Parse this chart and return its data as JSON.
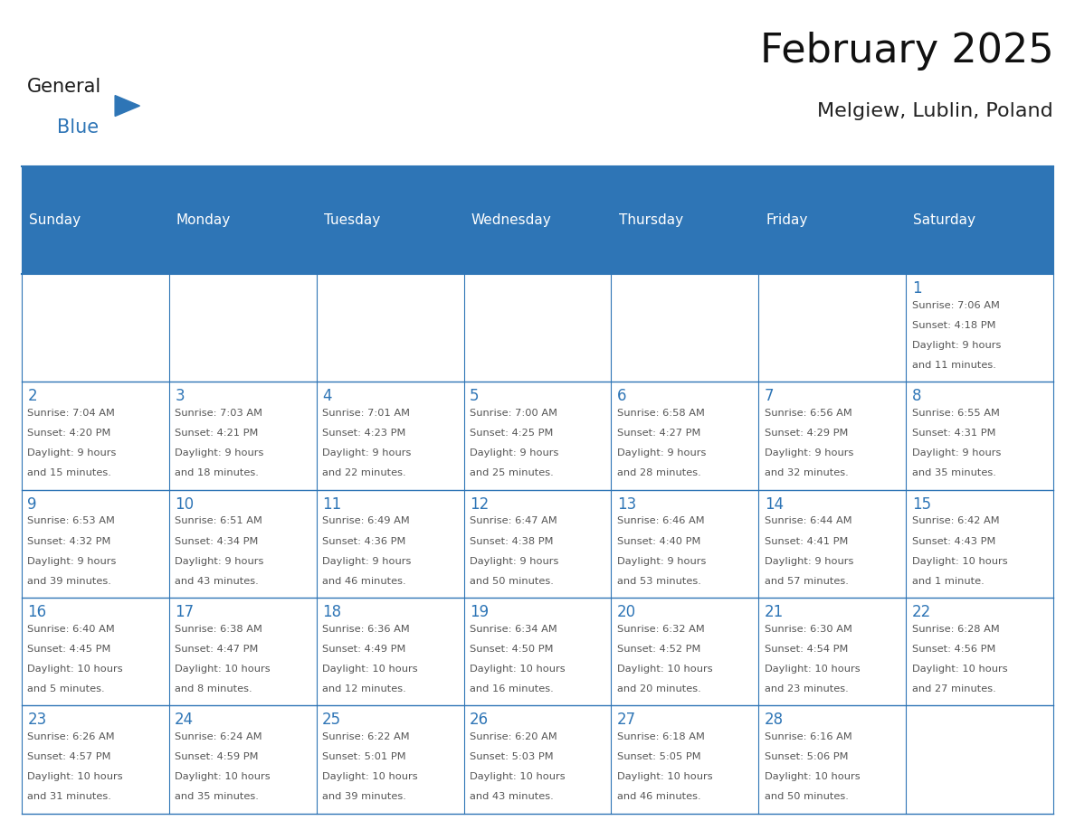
{
  "title": "February 2025",
  "subtitle": "Melgiew, Lublin, Poland",
  "header_bg": "#2E75B6",
  "header_text_color": "#FFFFFF",
  "cell_border_color": "#2E75B6",
  "day_number_color": "#2E75B6",
  "info_text_color": "#555555",
  "bg_color": "#FFFFFF",
  "days_of_week": [
    "Sunday",
    "Monday",
    "Tuesday",
    "Wednesday",
    "Thursday",
    "Friday",
    "Saturday"
  ],
  "weeks": [
    [
      {
        "day": "",
        "sunrise": "",
        "sunset": "",
        "daylight": ""
      },
      {
        "day": "",
        "sunrise": "",
        "sunset": "",
        "daylight": ""
      },
      {
        "day": "",
        "sunrise": "",
        "sunset": "",
        "daylight": ""
      },
      {
        "day": "",
        "sunrise": "",
        "sunset": "",
        "daylight": ""
      },
      {
        "day": "",
        "sunrise": "",
        "sunset": "",
        "daylight": ""
      },
      {
        "day": "",
        "sunrise": "",
        "sunset": "",
        "daylight": ""
      },
      {
        "day": "1",
        "sunrise": "Sunrise: 7:06 AM",
        "sunset": "Sunset: 4:18 PM",
        "daylight": "Daylight: 9 hours\nand 11 minutes."
      }
    ],
    [
      {
        "day": "2",
        "sunrise": "Sunrise: 7:04 AM",
        "sunset": "Sunset: 4:20 PM",
        "daylight": "Daylight: 9 hours\nand 15 minutes."
      },
      {
        "day": "3",
        "sunrise": "Sunrise: 7:03 AM",
        "sunset": "Sunset: 4:21 PM",
        "daylight": "Daylight: 9 hours\nand 18 minutes."
      },
      {
        "day": "4",
        "sunrise": "Sunrise: 7:01 AM",
        "sunset": "Sunset: 4:23 PM",
        "daylight": "Daylight: 9 hours\nand 22 minutes."
      },
      {
        "day": "5",
        "sunrise": "Sunrise: 7:00 AM",
        "sunset": "Sunset: 4:25 PM",
        "daylight": "Daylight: 9 hours\nand 25 minutes."
      },
      {
        "day": "6",
        "sunrise": "Sunrise: 6:58 AM",
        "sunset": "Sunset: 4:27 PM",
        "daylight": "Daylight: 9 hours\nand 28 minutes."
      },
      {
        "day": "7",
        "sunrise": "Sunrise: 6:56 AM",
        "sunset": "Sunset: 4:29 PM",
        "daylight": "Daylight: 9 hours\nand 32 minutes."
      },
      {
        "day": "8",
        "sunrise": "Sunrise: 6:55 AM",
        "sunset": "Sunset: 4:31 PM",
        "daylight": "Daylight: 9 hours\nand 35 minutes."
      }
    ],
    [
      {
        "day": "9",
        "sunrise": "Sunrise: 6:53 AM",
        "sunset": "Sunset: 4:32 PM",
        "daylight": "Daylight: 9 hours\nand 39 minutes."
      },
      {
        "day": "10",
        "sunrise": "Sunrise: 6:51 AM",
        "sunset": "Sunset: 4:34 PM",
        "daylight": "Daylight: 9 hours\nand 43 minutes."
      },
      {
        "day": "11",
        "sunrise": "Sunrise: 6:49 AM",
        "sunset": "Sunset: 4:36 PM",
        "daylight": "Daylight: 9 hours\nand 46 minutes."
      },
      {
        "day": "12",
        "sunrise": "Sunrise: 6:47 AM",
        "sunset": "Sunset: 4:38 PM",
        "daylight": "Daylight: 9 hours\nand 50 minutes."
      },
      {
        "day": "13",
        "sunrise": "Sunrise: 6:46 AM",
        "sunset": "Sunset: 4:40 PM",
        "daylight": "Daylight: 9 hours\nand 53 minutes."
      },
      {
        "day": "14",
        "sunrise": "Sunrise: 6:44 AM",
        "sunset": "Sunset: 4:41 PM",
        "daylight": "Daylight: 9 hours\nand 57 minutes."
      },
      {
        "day": "15",
        "sunrise": "Sunrise: 6:42 AM",
        "sunset": "Sunset: 4:43 PM",
        "daylight": "Daylight: 10 hours\nand 1 minute."
      }
    ],
    [
      {
        "day": "16",
        "sunrise": "Sunrise: 6:40 AM",
        "sunset": "Sunset: 4:45 PM",
        "daylight": "Daylight: 10 hours\nand 5 minutes."
      },
      {
        "day": "17",
        "sunrise": "Sunrise: 6:38 AM",
        "sunset": "Sunset: 4:47 PM",
        "daylight": "Daylight: 10 hours\nand 8 minutes."
      },
      {
        "day": "18",
        "sunrise": "Sunrise: 6:36 AM",
        "sunset": "Sunset: 4:49 PM",
        "daylight": "Daylight: 10 hours\nand 12 minutes."
      },
      {
        "day": "19",
        "sunrise": "Sunrise: 6:34 AM",
        "sunset": "Sunset: 4:50 PM",
        "daylight": "Daylight: 10 hours\nand 16 minutes."
      },
      {
        "day": "20",
        "sunrise": "Sunrise: 6:32 AM",
        "sunset": "Sunset: 4:52 PM",
        "daylight": "Daylight: 10 hours\nand 20 minutes."
      },
      {
        "day": "21",
        "sunrise": "Sunrise: 6:30 AM",
        "sunset": "Sunset: 4:54 PM",
        "daylight": "Daylight: 10 hours\nand 23 minutes."
      },
      {
        "day": "22",
        "sunrise": "Sunrise: 6:28 AM",
        "sunset": "Sunset: 4:56 PM",
        "daylight": "Daylight: 10 hours\nand 27 minutes."
      }
    ],
    [
      {
        "day": "23",
        "sunrise": "Sunrise: 6:26 AM",
        "sunset": "Sunset: 4:57 PM",
        "daylight": "Daylight: 10 hours\nand 31 minutes."
      },
      {
        "day": "24",
        "sunrise": "Sunrise: 6:24 AM",
        "sunset": "Sunset: 4:59 PM",
        "daylight": "Daylight: 10 hours\nand 35 minutes."
      },
      {
        "day": "25",
        "sunrise": "Sunrise: 6:22 AM",
        "sunset": "Sunset: 5:01 PM",
        "daylight": "Daylight: 10 hours\nand 39 minutes."
      },
      {
        "day": "26",
        "sunrise": "Sunrise: 6:20 AM",
        "sunset": "Sunset: 5:03 PM",
        "daylight": "Daylight: 10 hours\nand 43 minutes."
      },
      {
        "day": "27",
        "sunrise": "Sunrise: 6:18 AM",
        "sunset": "Sunset: 5:05 PM",
        "daylight": "Daylight: 10 hours\nand 46 minutes."
      },
      {
        "day": "28",
        "sunrise": "Sunrise: 6:16 AM",
        "sunset": "Sunset: 5:06 PM",
        "daylight": "Daylight: 10 hours\nand 50 minutes."
      },
      {
        "day": "",
        "sunrise": "",
        "sunset": "",
        "daylight": ""
      }
    ]
  ],
  "logo_text_general": "General",
  "logo_text_blue": "Blue",
  "logo_triangle_color": "#2E75B6"
}
